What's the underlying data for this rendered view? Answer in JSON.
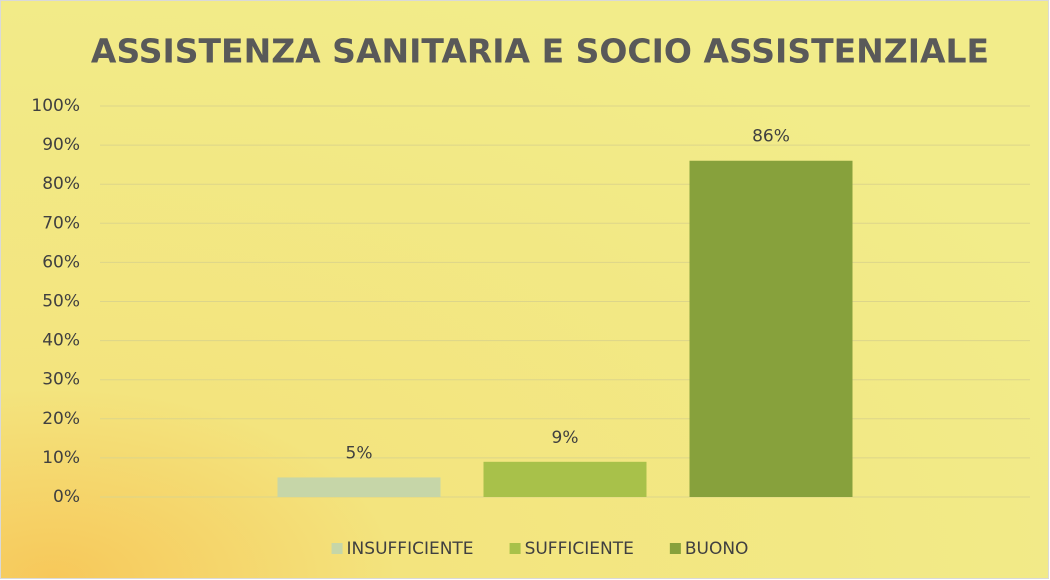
{
  "chart_data": {
    "type": "bar",
    "title": "ASSISTENZA SANITARIA E SOCIO ASSISTENZIALE",
    "categories": [
      null
    ],
    "series": [
      {
        "name": "INSUFFICIENTE",
        "color": "#c6d6a8",
        "values": [
          5
        ],
        "value_labels": [
          "5%"
        ]
      },
      {
        "name": "SUFFICIENTE",
        "color": "#a8c14a",
        "values": [
          9
        ],
        "value_labels": [
          "9%"
        ]
      },
      {
        "name": "BUONO",
        "color": "#87a13c",
        "values": [
          86
        ],
        "value_labels": [
          "86%"
        ]
      }
    ],
    "ylim": [
      0,
      100
    ],
    "yticks": [
      {
        "value": 0,
        "label": "0%"
      },
      {
        "value": 10,
        "label": "10%"
      },
      {
        "value": 20,
        "label": "20%"
      },
      {
        "value": 30,
        "label": "30%"
      },
      {
        "value": 40,
        "label": "40%"
      },
      {
        "value": 50,
        "label": "50%"
      },
      {
        "value": 60,
        "label": "60%"
      },
      {
        "value": 70,
        "label": "70%"
      },
      {
        "value": 80,
        "label": "80%"
      },
      {
        "value": 90,
        "label": "90%"
      },
      {
        "value": 100,
        "label": "100%"
      }
    ],
    "grid": true,
    "legend": "bottom"
  }
}
